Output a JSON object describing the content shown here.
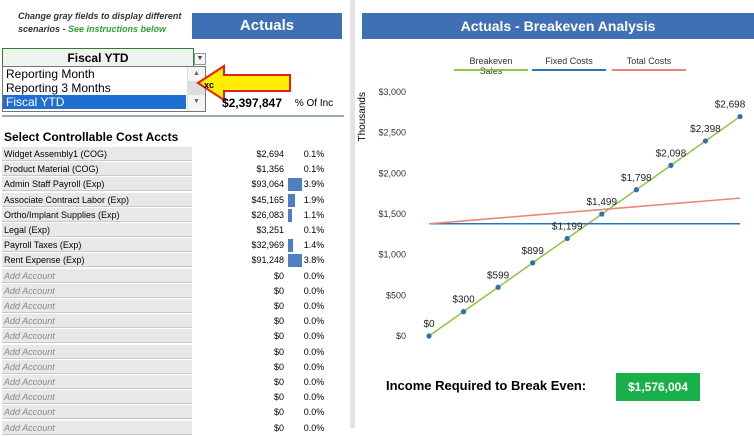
{
  "instructions": {
    "line1": "Change gray fields to display different",
    "line2": "scenarios - ",
    "link": "See instructions below"
  },
  "left_header": "Actuals",
  "period_select": {
    "selected": "Fiscal YTD",
    "options": [
      "Reporting Month",
      "Reporting 3 Months",
      "Fiscal YTD"
    ]
  },
  "total_value": "$2,397,847",
  "pct_header": "% Of Inc",
  "section_title": "Select Controllable Cost Accts",
  "accounts": [
    {
      "name": "Widget Assembly1 (COG)",
      "amount": "$2,694",
      "pct": "0.1%",
      "pct_value": 0.1
    },
    {
      "name": "Product Material (COG)",
      "amount": "$1,356",
      "pct": "0.1%",
      "pct_value": 0.1
    },
    {
      "name": "Admin Staff Payroll (Exp)",
      "amount": "$93,064",
      "pct": "3.9%",
      "pct_value": 3.9
    },
    {
      "name": "Associate Contract Labor (Exp)",
      "amount": "$45,165",
      "pct": "1.9%",
      "pct_value": 1.9
    },
    {
      "name": "Ortho/Implant Supplies (Exp)",
      "amount": "$26,083",
      "pct": "1.1%",
      "pct_value": 1.1
    },
    {
      "name": "Legal (Exp)",
      "amount": "$3,251",
      "pct": "0.1%",
      "pct_value": 0.1
    },
    {
      "name": "Payroll Taxes (Exp)",
      "amount": "$32,969",
      "pct": "1.4%",
      "pct_value": 1.4
    },
    {
      "name": "Rent Expense (Exp)",
      "amount": "$91,248",
      "pct": "3.8%",
      "pct_value": 3.8
    },
    {
      "name": "Add Account",
      "amount": "$0",
      "pct": "0.0%",
      "pct_value": 0
    },
    {
      "name": "Add Account",
      "amount": "$0",
      "pct": "0.0%",
      "pct_value": 0
    },
    {
      "name": "Add Account",
      "amount": "$0",
      "pct": "0.0%",
      "pct_value": 0
    },
    {
      "name": "Add Account",
      "amount": "$0",
      "pct": "0.0%",
      "pct_value": 0
    },
    {
      "name": "Add Account",
      "amount": "$0",
      "pct": "0.0%",
      "pct_value": 0
    },
    {
      "name": "Add Account",
      "amount": "$0",
      "pct": "0.0%",
      "pct_value": 0
    },
    {
      "name": "Add Account",
      "amount": "$0",
      "pct": "0.0%",
      "pct_value": 0
    },
    {
      "name": "Add Account",
      "amount": "$0",
      "pct": "0.0%",
      "pct_value": 0
    },
    {
      "name": "Add Account",
      "amount": "$0",
      "pct": "0.0%",
      "pct_value": 0
    },
    {
      "name": "Add Account",
      "amount": "$0",
      "pct": "0.0%",
      "pct_value": 0
    },
    {
      "name": "Add Account",
      "amount": "$0",
      "pct": "0.0%",
      "pct_value": 0
    }
  ],
  "right_header": "Actuals - Breakeven Analysis",
  "chart_data": {
    "type": "line",
    "ylabel": "Thousands",
    "ylim": [
      0,
      3000
    ],
    "yticks": [
      "$0",
      "$500",
      "$1,000",
      "$1,500",
      "$2,000",
      "$2,500",
      "$3,000"
    ],
    "legend_position": "top",
    "x": [
      0,
      1,
      2,
      3,
      4,
      5,
      6,
      7,
      8,
      9
    ],
    "series": [
      {
        "name": "Breakeven Sales",
        "color": "#8dc63f",
        "values": [
          0,
          300,
          599,
          899,
          1199,
          1499,
          1798,
          2098,
          2398,
          2698
        ],
        "labels": [
          "$0",
          "$300",
          "$599",
          "$899",
          "$1,199",
          "$1,499",
          "$1,798",
          "$2,098",
          "$2,398",
          "$2,698"
        ]
      },
      {
        "name": "Fixed Costs",
        "color": "#2e75b6",
        "values": [
          1380,
          1380,
          1380,
          1380,
          1380,
          1380,
          1380,
          1380,
          1380,
          1380
        ]
      },
      {
        "name": "Total Costs",
        "color": "#e8877a",
        "values": [
          1380,
          1415,
          1450,
          1485,
          1520,
          1555,
          1590,
          1625,
          1660,
          1695
        ]
      }
    ],
    "marker_color": "#2e6fb0"
  },
  "breakeven": {
    "label": "Income Required to Break Even:",
    "value": "$1,576,004"
  }
}
